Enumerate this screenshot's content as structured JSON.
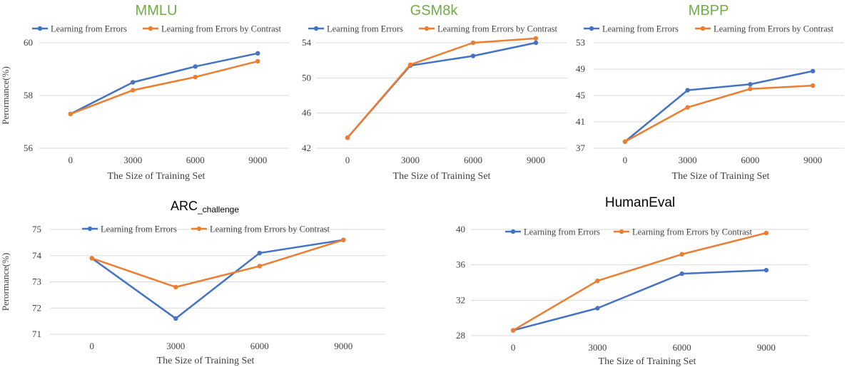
{
  "chart_data": [
    {
      "type": "line",
      "title": "MMLU",
      "title_color": "#70AD47",
      "xlabel": "The Size of Training Set",
      "ylabel": "Perormance(%)",
      "categories": [
        "0",
        "3000",
        "6000",
        "9000"
      ],
      "ylim": [
        56,
        60
      ],
      "yticks": [
        "56",
        "58",
        "60"
      ],
      "grid": true,
      "legend": "top",
      "series": [
        {
          "name": "Learning from Errors",
          "color": "#4472C4",
          "values": [
            57.3,
            58.5,
            59.1,
            59.6
          ]
        },
        {
          "name": "Learning from Errors by Contrast",
          "color": "#ED7D31",
          "values": [
            57.3,
            58.2,
            58.7,
            59.3
          ]
        }
      ]
    },
    {
      "type": "line",
      "title": "GSM8k",
      "title_color": "#70AD47",
      "xlabel": "The Size of Training Set",
      "ylabel": "",
      "categories": [
        "0",
        "3000",
        "6000",
        "9000"
      ],
      "ylim": [
        42,
        54
      ],
      "yticks": [
        "42",
        "46",
        "50",
        "54"
      ],
      "grid": true,
      "legend": "top",
      "series": [
        {
          "name": "Learning from Errors",
          "color": "#4472C4",
          "values": [
            43.2,
            51.4,
            52.5,
            54.0
          ]
        },
        {
          "name": "Learning from Errors by Contrast",
          "color": "#ED7D31",
          "values": [
            43.2,
            51.5,
            54.0,
            54.5
          ]
        }
      ]
    },
    {
      "type": "line",
      "title": "MBPP",
      "title_color": "#70AD47",
      "xlabel": "The Size of Training Set",
      "ylabel": "",
      "categories": [
        "0",
        "3000",
        "6000",
        "9000"
      ],
      "ylim": [
        37,
        53
      ],
      "yticks": [
        "37",
        "41",
        "45",
        "49",
        "53"
      ],
      "grid": true,
      "legend": "top",
      "series": [
        {
          "name": "Learning from Errors",
          "color": "#4472C4",
          "values": [
            38.0,
            45.8,
            46.7,
            48.7
          ]
        },
        {
          "name": "Learning from Errors by Contrast",
          "color": "#ED7D31",
          "values": [
            38.0,
            43.2,
            46.0,
            46.5
          ]
        }
      ]
    },
    {
      "type": "line",
      "title": "ARC",
      "title_subscript": "_challenge",
      "title_color": "#000000",
      "xlabel": "The Size of Training Set",
      "ylabel": "Perormance(%)",
      "categories": [
        "0",
        "3000",
        "6000",
        "9000"
      ],
      "ylim": [
        71,
        75
      ],
      "yticks": [
        "71",
        "72",
        "73",
        "74",
        "75"
      ],
      "grid": true,
      "legend": "top",
      "series": [
        {
          "name": "Learning from Errors",
          "color": "#4472C4",
          "values": [
            73.9,
            71.6,
            74.1,
            74.6
          ]
        },
        {
          "name": "Learning from Errors by Contrast",
          "color": "#ED7D31",
          "values": [
            73.9,
            72.8,
            73.6,
            74.6
          ]
        }
      ]
    },
    {
      "type": "line",
      "title": "HumanEval",
      "title_color": "#000000",
      "xlabel": "The Size of Training Set",
      "ylabel": "",
      "categories": [
        "0",
        "3000",
        "6000",
        "9000"
      ],
      "ylim": [
        28,
        40
      ],
      "yticks": [
        "28",
        "32",
        "36",
        "40"
      ],
      "grid": true,
      "legend": "top",
      "series": [
        {
          "name": "Learning from Errors",
          "color": "#4472C4",
          "values": [
            28.6,
            31.1,
            35.0,
            35.4
          ]
        },
        {
          "name": "Learning from Errors by Contrast",
          "color": "#ED7D31",
          "values": [
            28.6,
            34.2,
            37.2,
            39.6
          ]
        }
      ]
    }
  ]
}
